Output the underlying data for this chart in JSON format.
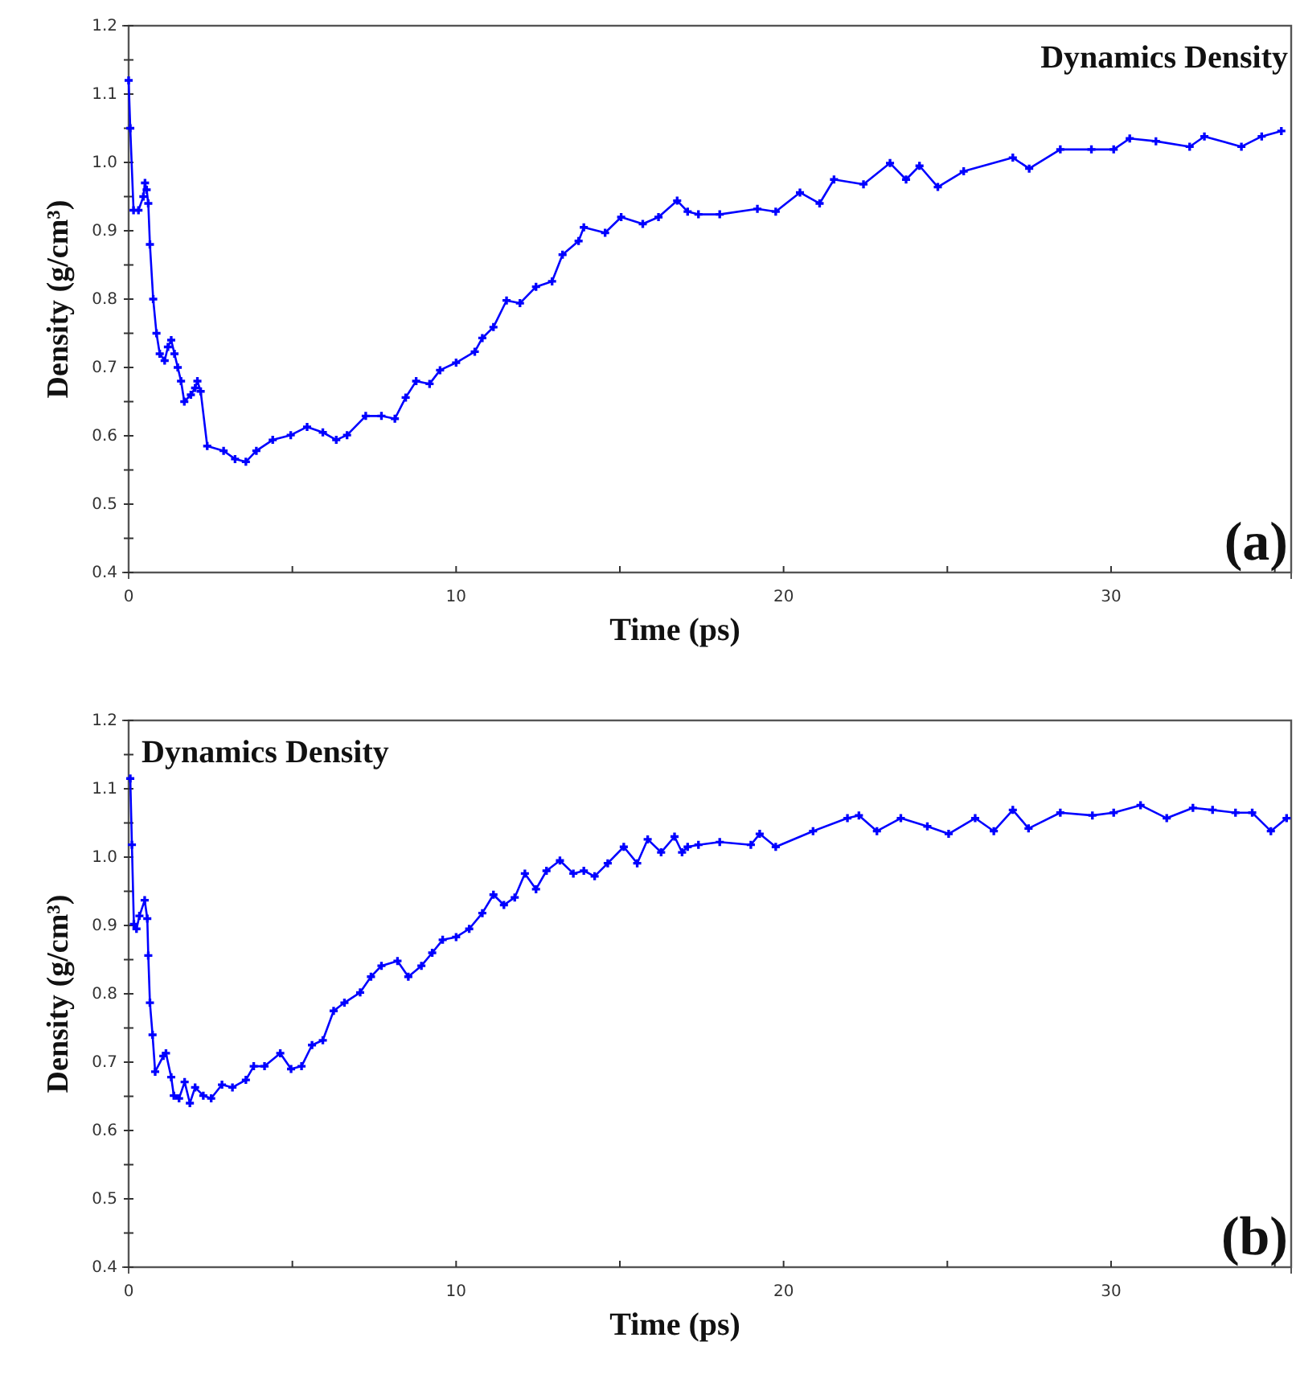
{
  "chart_data": [
    {
      "type": "line",
      "title": "Dynamics Density",
      "annotations": [
        "(a)"
      ],
      "xlabel": "Time (ps)",
      "ylabel": "Density (g/cm³)",
      "xlim": [
        0,
        35.5
      ],
      "xticks": [
        0,
        {
          "value": 5,
          "label": null
        },
        10,
        {
          "value": 15,
          "label": null
        },
        20,
        {
          "value": 25,
          "label": null
        },
        30,
        {
          "value": 35,
          "label": null
        }
      ],
      "ylim": [
        0.4,
        1.2
      ],
      "yticks": [
        0.4,
        {
          "value": 0.45,
          "label": null
        },
        0.5,
        {
          "value": 0.55,
          "label": null
        },
        0.6,
        {
          "value": 0.65,
          "label": null
        },
        0.7,
        {
          "value": 0.75,
          "label": null
        },
        0.8,
        {
          "value": 0.85,
          "label": null
        },
        0.9,
        {
          "value": 0.95,
          "label": null
        },
        {
          "value": 1.0,
          "label": "1.0"
        },
        {
          "value": 1.05,
          "label": null
        },
        1.1,
        {
          "value": 1.15,
          "label": null
        },
        1.2
      ],
      "marker": "cross",
      "grid": false,
      "series": [
        {
          "color": "#0000ff",
          "x": [
            0,
            0.05,
            0.15,
            0.3,
            0.45,
            0.5,
            0.55,
            0.6,
            0.65,
            0.75,
            0.85,
            0.95,
            1.1,
            1.2,
            1.3,
            1.4,
            1.5,
            1.6,
            1.7,
            1.9,
            2.03,
            2.1,
            2.2,
            2.4,
            2.9,
            3.25,
            3.58,
            3.9,
            4.4,
            4.95,
            5.45,
            5.93,
            6.34,
            6.67,
            7.24,
            7.72,
            8.13,
            8.46,
            8.78,
            9.19,
            9.51,
            10.0,
            10.57,
            10.8,
            11.14,
            11.54,
            11.95,
            12.44,
            12.93,
            13.25,
            13.74,
            13.9,
            14.55,
            15.04,
            15.7,
            16.18,
            16.75,
            17.07,
            17.4,
            18.05,
            19.2,
            19.76,
            20.5,
            21.1,
            21.54,
            22.44,
            23.25,
            23.74,
            24.15,
            24.71,
            25.5,
            27.0,
            27.5,
            28.45,
            29.4,
            30.08,
            30.57,
            31.37,
            32.4,
            32.85,
            33.98,
            34.6,
            35.2
          ],
          "values": [
            1.12,
            1.05,
            0.93,
            0.93,
            0.95,
            0.97,
            0.96,
            0.94,
            0.88,
            0.8,
            0.75,
            0.72,
            0.71,
            0.73,
            0.74,
            0.72,
            0.7,
            0.68,
            0.65,
            0.66,
            0.67,
            0.68,
            0.665,
            0.585,
            0.578,
            0.566,
            0.562,
            0.578,
            0.594,
            0.601,
            0.613,
            0.605,
            0.594,
            0.601,
            0.629,
            0.629,
            0.625,
            0.656,
            0.68,
            0.676,
            0.696,
            0.707,
            0.723,
            0.743,
            0.759,
            0.798,
            0.794,
            0.818,
            0.826,
            0.865,
            0.885,
            0.905,
            0.897,
            0.92,
            0.91,
            0.92,
            0.944,
            0.928,
            0.924,
            0.924,
            0.932,
            0.928,
            0.956,
            0.94,
            0.975,
            0.968,
            0.999,
            0.975,
            0.995,
            0.964,
            0.987,
            1.007,
            0.991,
            1.019,
            1.019,
            1.019,
            1.035,
            1.031,
            1.023,
            1.038,
            1.023,
            1.038,
            1.046
          ]
        }
      ]
    },
    {
      "type": "line",
      "title": "Dynamics Density",
      "annotations": [
        "(b)"
      ],
      "xlabel": "Time (ps)",
      "ylabel": "Density (g/cm³)",
      "xlim": [
        0,
        35.5
      ],
      "xticks": [
        0,
        {
          "value": 5,
          "label": null
        },
        10,
        {
          "value": 15,
          "label": null
        },
        20,
        {
          "value": 25,
          "label": null
        },
        30,
        {
          "value": 35,
          "label": null
        }
      ],
      "ylim": [
        0.4,
        1.2
      ],
      "yticks": [
        0.4,
        {
          "value": 0.45,
          "label": null
        },
        0.5,
        {
          "value": 0.55,
          "label": null
        },
        0.6,
        {
          "value": 0.65,
          "label": null
        },
        0.7,
        {
          "value": 0.75,
          "label": null
        },
        0.8,
        {
          "value": 0.85,
          "label": null
        },
        0.9,
        {
          "value": 0.95,
          "label": null
        },
        {
          "value": 1.0,
          "label": "1.0"
        },
        {
          "value": 1.05,
          "label": null
        },
        1.1,
        {
          "value": 1.15,
          "label": null
        },
        1.2
      ],
      "marker": "cross",
      "grid": false,
      "series": [
        {
          "color": "#0000ff",
          "x": [
            0.05,
            0.1,
            0.16,
            0.24,
            0.33,
            0.49,
            0.57,
            0.6,
            0.65,
            0.73,
            0.81,
            1.06,
            1.14,
            1.3,
            1.38,
            1.54,
            1.71,
            1.87,
            2.03,
            2.28,
            2.52,
            2.85,
            3.17,
            3.58,
            3.82,
            4.15,
            4.63,
            4.96,
            5.28,
            5.6,
            5.93,
            6.26,
            6.59,
            7.07,
            7.4,
            7.72,
            8.21,
            8.54,
            8.94,
            9.27,
            9.59,
            10.0,
            10.4,
            10.8,
            11.14,
            11.46,
            11.79,
            12.1,
            12.44,
            12.76,
            13.17,
            13.58,
            13.9,
            14.23,
            14.63,
            15.12,
            15.53,
            15.85,
            16.26,
            16.67,
            16.9,
            17.07,
            17.4,
            18.05,
            19.0,
            19.27,
            19.76,
            20.9,
            21.95,
            22.3,
            22.85,
            23.58,
            24.39,
            25.04,
            25.85,
            26.42,
            27.0,
            27.48,
            28.45,
            29.43,
            30.08,
            30.9,
            31.7,
            32.5,
            33.1,
            33.8,
            34.31,
            34.88,
            35.36
          ],
          "values": [
            1.115,
            1.018,
            0.902,
            0.895,
            0.914,
            0.937,
            0.91,
            0.856,
            0.787,
            0.74,
            0.686,
            0.709,
            0.713,
            0.678,
            0.651,
            0.647,
            0.671,
            0.64,
            0.663,
            0.651,
            0.647,
            0.667,
            0.663,
            0.674,
            0.694,
            0.694,
            0.713,
            0.69,
            0.694,
            0.725,
            0.732,
            0.775,
            0.787,
            0.802,
            0.825,
            0.841,
            0.848,
            0.825,
            0.841,
            0.86,
            0.879,
            0.883,
            0.895,
            0.918,
            0.945,
            0.93,
            0.941,
            0.976,
            0.953,
            0.98,
            0.995,
            0.976,
            0.98,
            0.972,
            0.991,
            1.015,
            0.991,
            1.026,
            1.007,
            1.03,
            1.007,
            1.015,
            1.018,
            1.022,
            1.018,
            1.034,
            1.015,
            1.038,
            1.057,
            1.061,
            1.038,
            1.057,
            1.045,
            1.034,
            1.057,
            1.038,
            1.069,
            1.042,
            1.065,
            1.061,
            1.065,
            1.076,
            1.057,
            1.072,
            1.069,
            1.065,
            1.065,
            1.038,
            1.057
          ]
        }
      ]
    }
  ]
}
